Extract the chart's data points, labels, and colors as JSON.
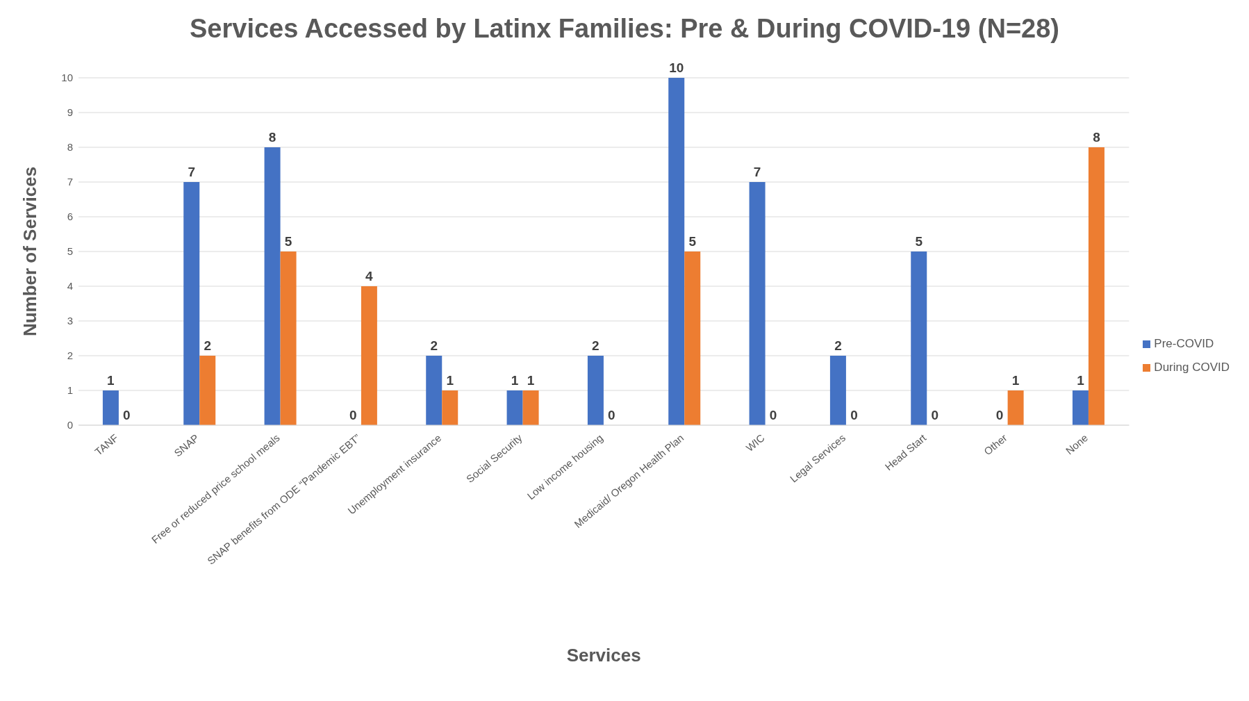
{
  "chart_data": {
    "type": "bar",
    "title": "Services Accessed by Latinx Families: Pre & During COVID-19 (N=28)",
    "xlabel": "Services",
    "ylabel": "Number of Services",
    "categories": [
      "TANF",
      "SNAP",
      "Free or reduced price school meals",
      "SNAP benefits from ODE “Pandemic EBT”",
      "Unemployment insurance",
      "Social Security",
      "Low income housing",
      "Medicaid/ Oregon Health Plan",
      "WIC",
      "Legal Services",
      "Head Start",
      "Other",
      "None"
    ],
    "series": [
      {
        "name": "Pre-COVID",
        "color": "#4472c4",
        "values": [
          1,
          7,
          8,
          0,
          2,
          1,
          2,
          10,
          7,
          2,
          5,
          0,
          1
        ]
      },
      {
        "name": "During COVID",
        "color": "#ed7d31",
        "values": [
          0,
          2,
          5,
          4,
          1,
          1,
          0,
          5,
          0,
          0,
          0,
          1,
          8
        ]
      }
    ],
    "ylim": [
      0,
      10
    ],
    "yticks": [
      0,
      1,
      2,
      3,
      4,
      5,
      6,
      7,
      8,
      9,
      10
    ],
    "grid": "y",
    "legend": "right",
    "data_labels": true
  }
}
